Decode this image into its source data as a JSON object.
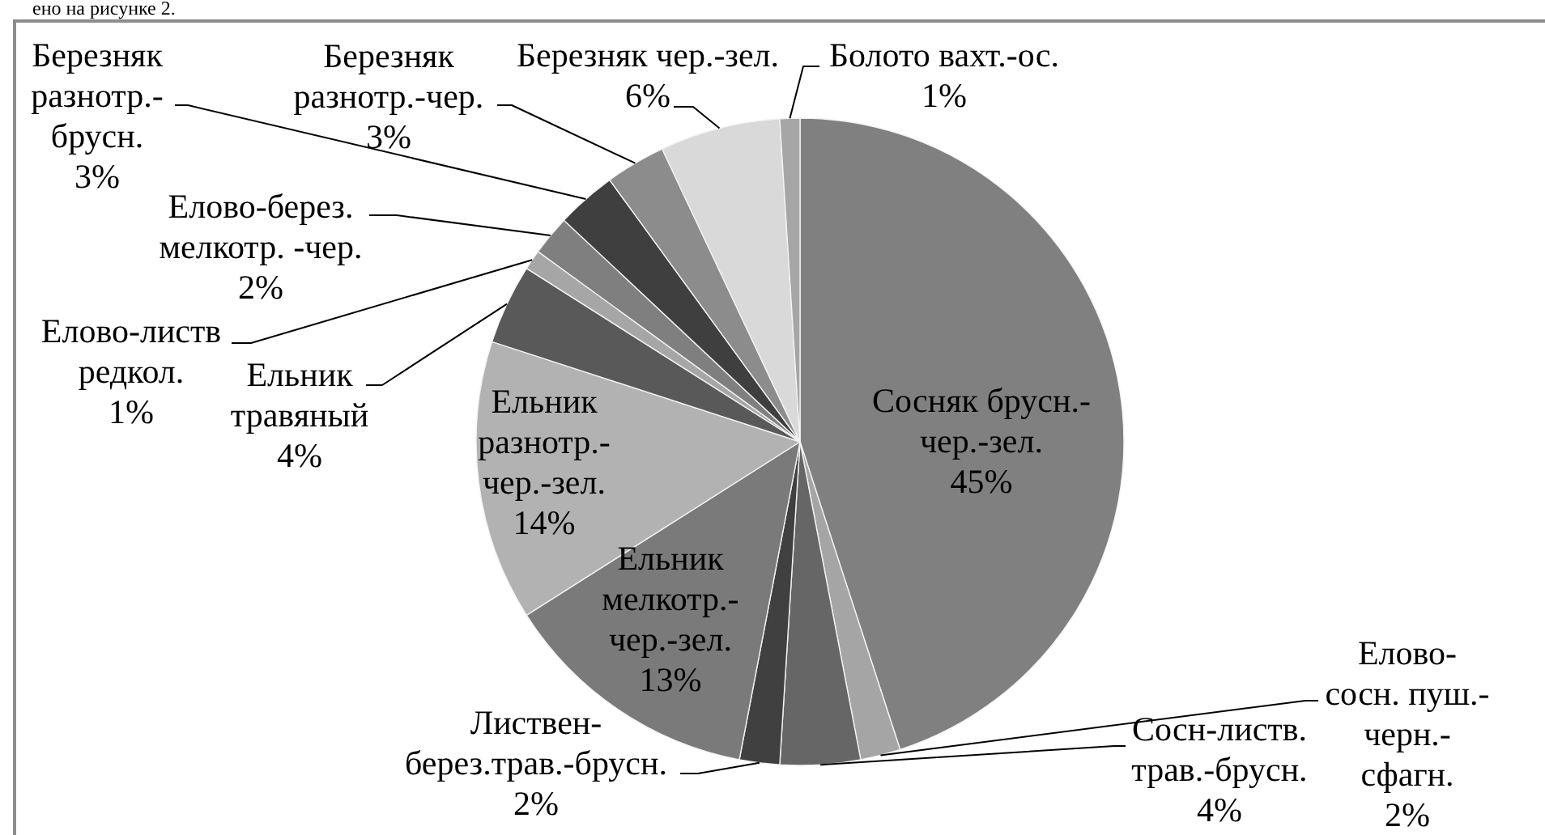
{
  "chart_data": {
    "type": "pie",
    "categories": [
      "Сосняк брусн.-чер.-зел.",
      "Елово-сосн. пуш.-черн.-сфагн.",
      "Сосн-листв. трав.-брусн.",
      "Листвен-берез.трав.-брусн.",
      "Ельник мелкотр.-чер.-зел.",
      "Ельник разнотр.-чер.-зел.",
      "Ельник травяный",
      "Елово-листв редкол.",
      "Елово-берез. мелкотр. -чер.",
      "Березняк разнотр.-брусн.",
      "Березняк разнотр.-чер.",
      "Березняк чер.-зел.",
      "Болото вахт.-ос."
    ],
    "values": [
      45,
      2,
      4,
      2,
      13,
      14,
      4,
      1,
      2,
      3,
      3,
      6,
      1
    ],
    "value_labels": [
      "45%",
      "2%",
      "4%",
      "2%",
      "13%",
      "14%",
      "4%",
      "1%",
      "2%",
      "3%",
      "3%",
      "6%",
      "1%"
    ],
    "colors": [
      "#808080",
      "#a5a5a5",
      "#666666",
      "#404040",
      "#7a7a7a",
      "#b2b2b2",
      "#595959",
      "#a6a6a6",
      "#7f7f7f",
      "#3f3f3f",
      "#8c8c8c",
      "#d9d9d9",
      "#a6a6a6"
    ],
    "annotations": [
      "ено на рисунке 2."
    ]
  }
}
